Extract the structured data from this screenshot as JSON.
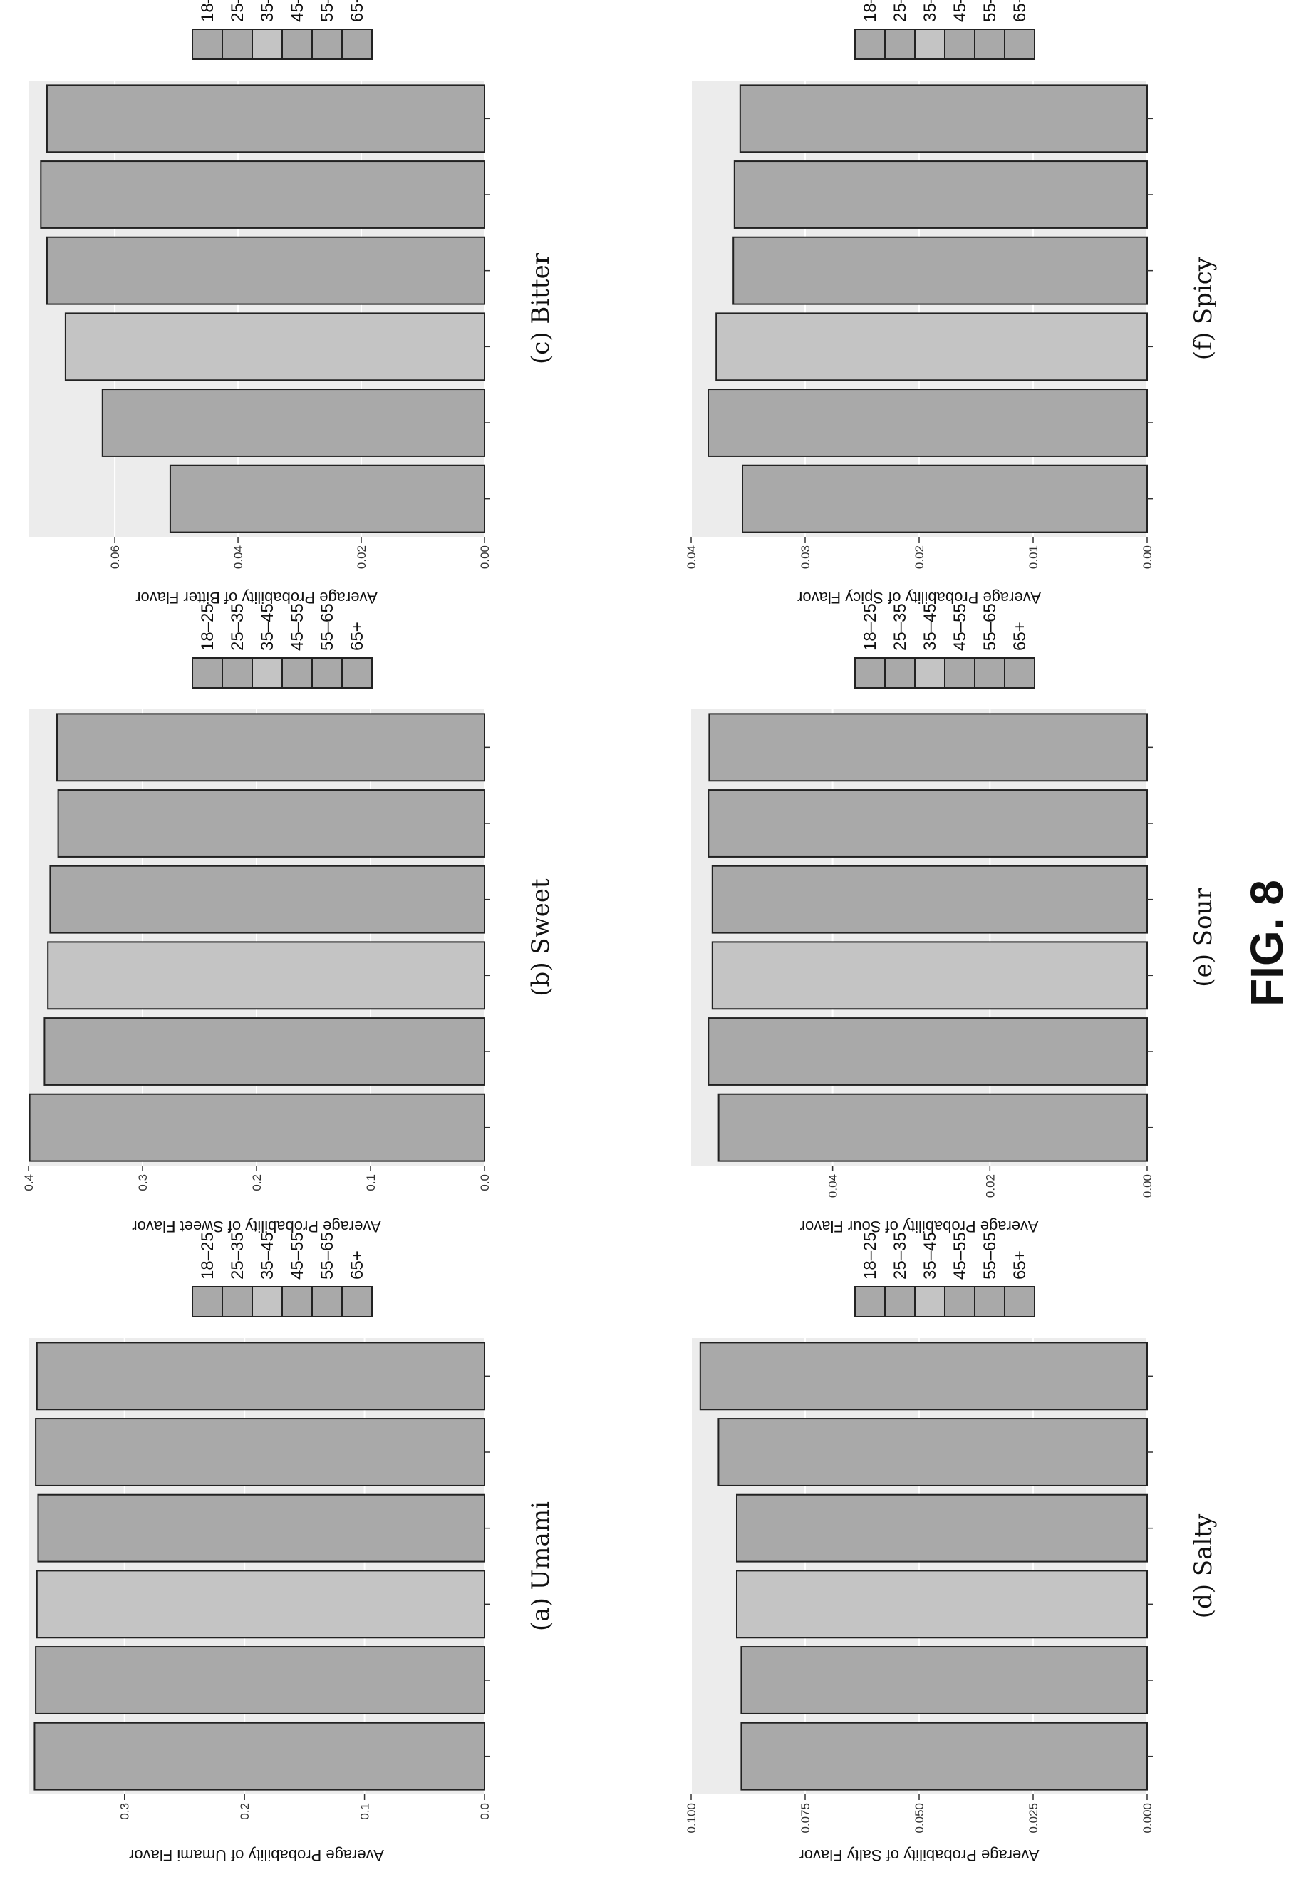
{
  "figure_label": "FIG. 8",
  "legend_items": [
    "18–25",
    "25–35",
    "35–45",
    "45–55",
    "55–65",
    "65+"
  ],
  "colors": {
    "bar_fill_dark": "#a9a9a9",
    "bar_fill_light": "#c4c4c4",
    "bar_stroke": "#222222",
    "panel_bg": "#ececec",
    "grid": "#ffffff"
  },
  "chart_data": [
    {
      "type": "bar",
      "caption": "(a) Umami",
      "ylabel": "Average Probability of Umami Flavor",
      "categories": [
        "18–25",
        "25–35",
        "35–45",
        "45–55",
        "55–65",
        "65+"
      ],
      "values": [
        0.375,
        0.374,
        0.373,
        0.372,
        0.374,
        0.373
      ],
      "ylim": [
        0,
        0.38
      ],
      "ticks": [
        0.0,
        0.1,
        0.2,
        0.3
      ],
      "tick_labels": [
        "0.0",
        "0.1",
        "0.2",
        "0.3"
      ],
      "legend_position": "right"
    },
    {
      "type": "bar",
      "caption": "(b) Sweet",
      "ylabel": "Average Probability of Sweet Flavor",
      "categories": [
        "18–25",
        "25–35",
        "35–45",
        "45–55",
        "55–65",
        "65+"
      ],
      "values": [
        0.399,
        0.386,
        0.383,
        0.381,
        0.374,
        0.375
      ],
      "ylim": [
        0,
        0.4
      ],
      "ticks": [
        0.0,
        0.1,
        0.2,
        0.3,
        0.4
      ],
      "tick_labels": [
        "0.0",
        "0.1",
        "0.2",
        "0.3",
        "0.4"
      ],
      "legend_position": "right"
    },
    {
      "type": "bar",
      "caption": "(c) Bitter",
      "ylabel": "Average Probability of Bitter Flavor",
      "categories": [
        "18–25",
        "25–35",
        "35–45",
        "45–55",
        "55–65",
        "65+"
      ],
      "values": [
        0.051,
        0.062,
        0.068,
        0.071,
        0.072,
        0.071
      ],
      "ylim": [
        0,
        0.074
      ],
      "ticks": [
        0.0,
        0.02,
        0.04,
        0.06
      ],
      "tick_labels": [
        "0.00",
        "0.02",
        "0.04",
        "0.06"
      ],
      "legend_position": "right"
    },
    {
      "type": "bar",
      "caption": "(d) Salty",
      "ylabel": "Average Probability of Salty Flavor",
      "categories": [
        "18–25",
        "25–35",
        "35–45",
        "45–55",
        "55–65",
        "65+"
      ],
      "values": [
        0.089,
        0.089,
        0.09,
        0.09,
        0.094,
        0.098
      ],
      "ylim": [
        0,
        0.1
      ],
      "ticks": [
        0.0,
        0.025,
        0.05,
        0.075,
        0.1
      ],
      "tick_labels": [
        "0.000",
        "0.025",
        "0.050",
        "0.075",
        "0.100"
      ],
      "legend_position": "right"
    },
    {
      "type": "bar",
      "caption": "(e) Sour",
      "ylabel": "Average Probability of Sour Flavor",
      "categories": [
        "18–25",
        "25–35",
        "35–45",
        "45–55",
        "55–65",
        "65+"
      ],
      "values": [
        0.0545,
        0.0558,
        0.0553,
        0.0553,
        0.0558,
        0.0557
      ],
      "ylim": [
        0,
        0.058
      ],
      "ticks": [
        0.0,
        0.02,
        0.04
      ],
      "tick_labels": [
        "0.00",
        "0.02",
        "0.04"
      ],
      "legend_position": "right"
    },
    {
      "type": "bar",
      "caption": "(f) Spicy",
      "ylabel": "Average Probability of Spicy Flavor",
      "categories": [
        "18–25",
        "25–35",
        "35–45",
        "45–55",
        "55–65",
        "65+"
      ],
      "values": [
        0.0355,
        0.0385,
        0.0378,
        0.0363,
        0.0362,
        0.0357
      ],
      "ylim": [
        0,
        0.04
      ],
      "ticks": [
        0.0,
        0.01,
        0.02,
        0.03,
        0.04
      ],
      "tick_labels": [
        "0.00",
        "0.01",
        "0.02",
        "0.03",
        "0.04"
      ],
      "legend_position": "right"
    }
  ]
}
